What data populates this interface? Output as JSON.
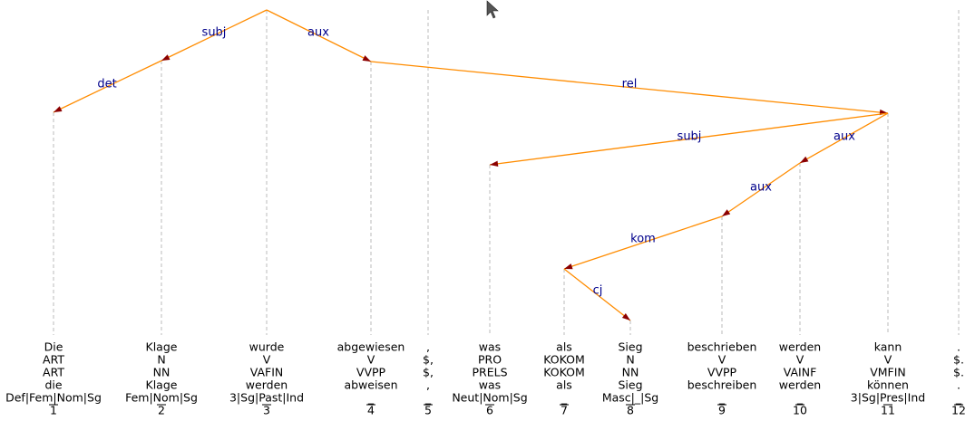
{
  "tokens": [
    {
      "index": "1",
      "form": "Die",
      "cpos": "ART",
      "pos": "ART",
      "lemma": "die",
      "morph": "Def|Fem|Nom|Sg"
    },
    {
      "index": "2",
      "form": "Klage",
      "cpos": "N",
      "pos": "NN",
      "lemma": "Klage",
      "morph": "Fem|Nom|Sg"
    },
    {
      "index": "3",
      "form": "wurde",
      "cpos": "V",
      "pos": "VAFIN",
      "lemma": "werden",
      "morph": "3|Sg|Past|Ind"
    },
    {
      "index": "4",
      "form": "abgewiesen",
      "cpos": "V",
      "pos": "VVPP",
      "lemma": "abweisen",
      "morph": "_"
    },
    {
      "index": "5",
      "form": ",",
      "cpos": "$,",
      "pos": "$,",
      "lemma": ",",
      "morph": "_"
    },
    {
      "index": "6",
      "form": "was",
      "cpos": "PRO",
      "pos": "PRELS",
      "lemma": "was",
      "morph": "Neut|Nom|Sg"
    },
    {
      "index": "7",
      "form": "als",
      "cpos": "KOKOM",
      "pos": "KOKOM",
      "lemma": "als",
      "morph": "_"
    },
    {
      "index": "8",
      "form": "Sieg",
      "cpos": "N",
      "pos": "NN",
      "lemma": "Sieg",
      "morph": "Masc|_|Sg"
    },
    {
      "index": "9",
      "form": "beschrieben",
      "cpos": "V",
      "pos": "VVPP",
      "lemma": "beschreiben",
      "morph": "_"
    },
    {
      "index": "10",
      "form": "werden",
      "cpos": "V",
      "pos": "VAINF",
      "lemma": "werden",
      "morph": "_"
    },
    {
      "index": "11",
      "form": "kann",
      "cpos": "V",
      "pos": "VMFIN",
      "lemma": "können",
      "morph": "3|Sg|Pres|Ind"
    },
    {
      "index": "12",
      "form": ".",
      "cpos": "$.",
      "pos": "$.",
      "lemma": ".",
      "morph": "_"
    }
  ],
  "arcs": [
    {
      "head": 3,
      "dep": 2,
      "label": "subj"
    },
    {
      "head": 3,
      "dep": 4,
      "label": "aux"
    },
    {
      "head": 2,
      "dep": 1,
      "label": "det"
    },
    {
      "head": 4,
      "dep": 11,
      "label": "rel"
    },
    {
      "head": 11,
      "dep": 6,
      "label": "subj"
    },
    {
      "head": 11,
      "dep": 10,
      "label": "aux"
    },
    {
      "head": 10,
      "dep": 9,
      "label": "aux"
    },
    {
      "head": 9,
      "dep": 7,
      "label": "kom"
    },
    {
      "head": 7,
      "dep": 8,
      "label": "cj"
    }
  ],
  "colors": {
    "edge": "#ff8c00",
    "label": "#00008b",
    "arrowhead": "#8b0000",
    "guide": "#bbbbbb"
  }
}
